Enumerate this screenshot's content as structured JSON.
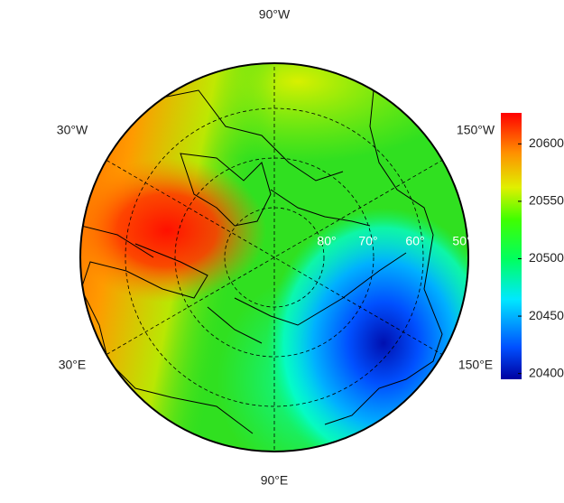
{
  "map": {
    "longitude_labels": [
      "90°W",
      "30°W",
      "150°W",
      "30°E",
      "150°E",
      "90°E"
    ],
    "latitude_labels": [
      "80°",
      "70°",
      "60°",
      "50°"
    ]
  },
  "colorbar": {
    "lim": [
      20395,
      20627
    ],
    "ticks": [
      20400,
      20450,
      20500,
      20550,
      20600
    ]
  }
}
